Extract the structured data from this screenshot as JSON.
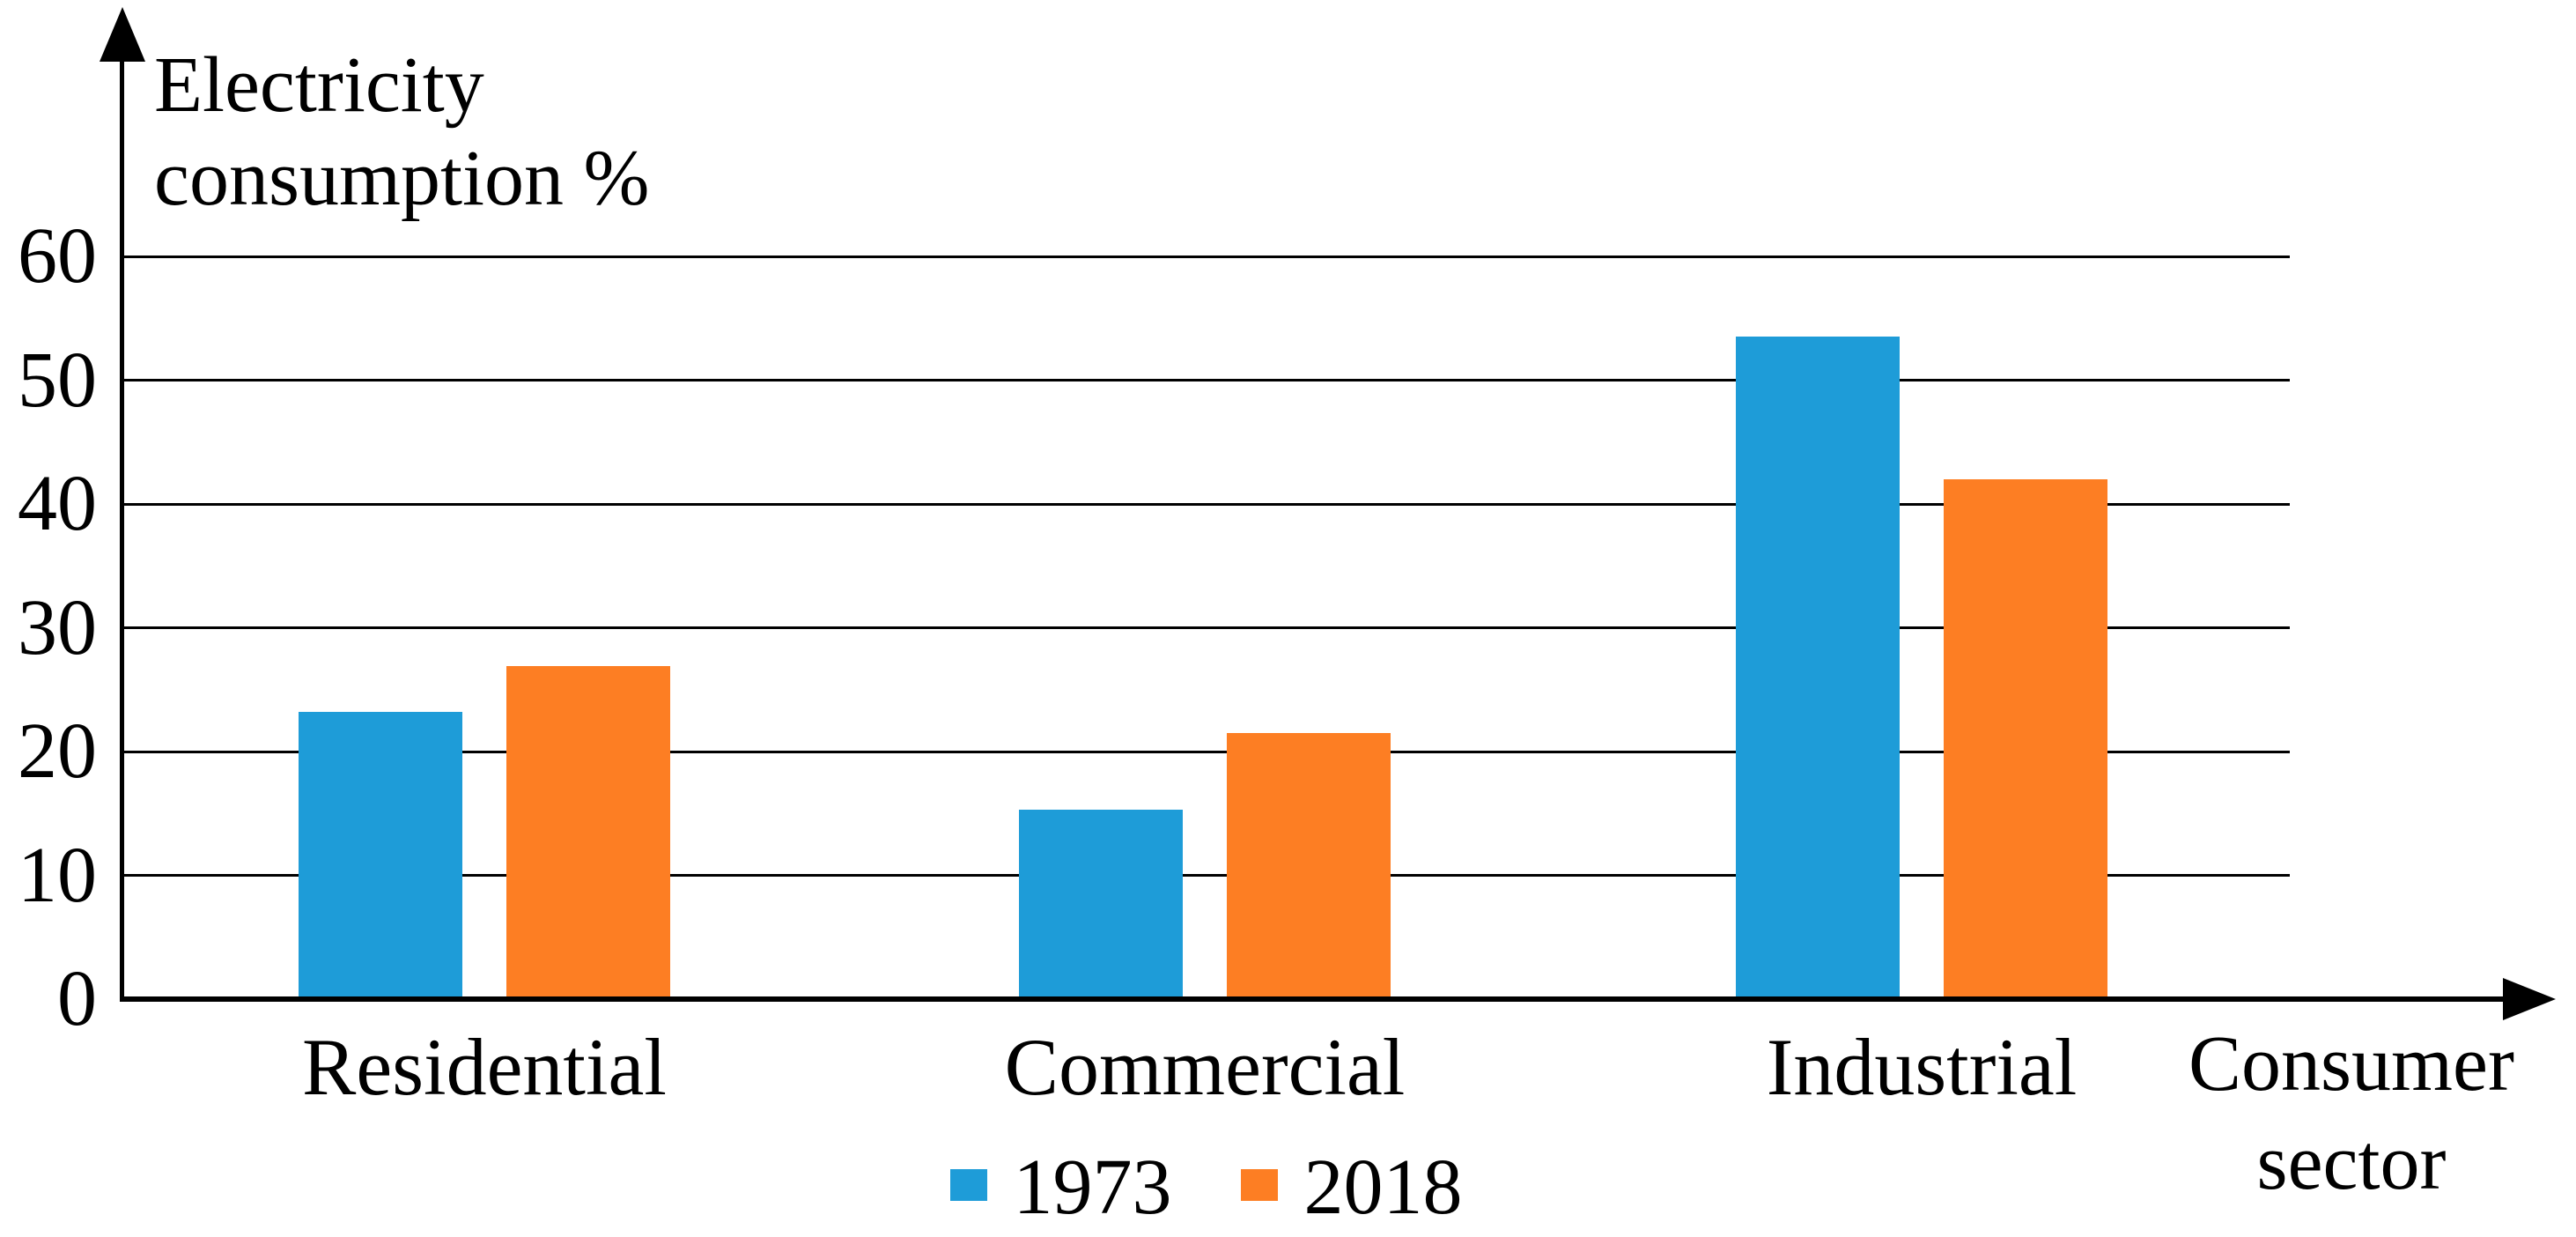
{
  "chart_data": {
    "type": "bar",
    "title": "Electricity consumption %",
    "title_lines": [
      "Electricity",
      "consumption %"
    ],
    "ylabel": "Electricity consumption %",
    "xlabel": "Consumer sector",
    "xlabel_lines": [
      "Consumer",
      "sector"
    ],
    "categories": [
      "Residential",
      "Commercial",
      "Industrial"
    ],
    "series": [
      {
        "name": "1973",
        "color": "#1E9CD8",
        "values": [
          23.2,
          15.3,
          53.5
        ]
      },
      {
        "name": "2018",
        "color": "#FD7E23",
        "values": [
          26.9,
          21.5,
          42.0
        ]
      }
    ],
    "yticks": [
      0,
      10,
      20,
      30,
      40,
      50,
      60
    ],
    "ylim": [
      0,
      60
    ],
    "grid": "horizontal",
    "gridline_color": "#000000",
    "axis_color": "#000000",
    "text_color": "#000000",
    "background_color": "#FFFFFF",
    "legend_position": "bottom-center"
  }
}
